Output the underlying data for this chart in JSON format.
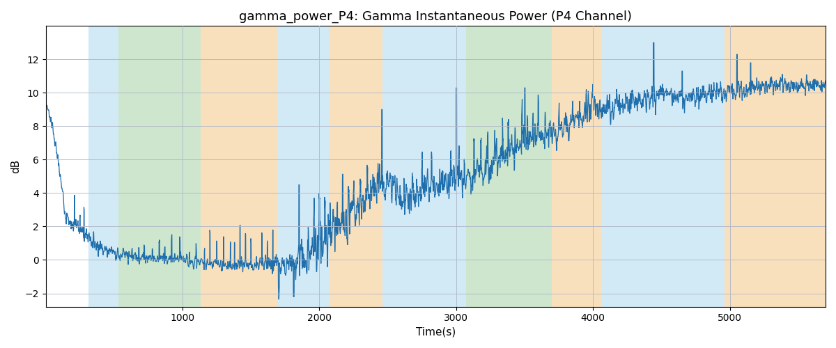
{
  "title": "gamma_power_P4: Gamma Instantaneous Power (P4 Channel)",
  "xlabel": "Time(s)",
  "ylabel": "dB",
  "xlim": [
    0,
    5700
  ],
  "ylim": [
    -2.8,
    14.0
  ],
  "line_color": "#1f6fad",
  "line_width": 0.9,
  "bg_color": "#ffffff",
  "grid_color": "#b0b8c8",
  "title_fontsize": 13,
  "label_fontsize": 11,
  "tick_fontsize": 10,
  "regions": [
    {
      "xmin": 310,
      "xmax": 530,
      "color": "#add8f0",
      "alpha": 0.55
    },
    {
      "xmin": 530,
      "xmax": 1130,
      "color": "#90c990",
      "alpha": 0.45
    },
    {
      "xmin": 1130,
      "xmax": 1700,
      "color": "#f5c888",
      "alpha": 0.55
    },
    {
      "xmin": 1700,
      "xmax": 1870,
      "color": "#add8f0",
      "alpha": 0.55
    },
    {
      "xmin": 1870,
      "xmax": 2070,
      "color": "#add8f0",
      "alpha": 0.55
    },
    {
      "xmin": 2070,
      "xmax": 2460,
      "color": "#f5c888",
      "alpha": 0.55
    },
    {
      "xmin": 2460,
      "xmax": 3070,
      "color": "#add8f0",
      "alpha": 0.55
    },
    {
      "xmin": 3070,
      "xmax": 3700,
      "color": "#90c990",
      "alpha": 0.45
    },
    {
      "xmin": 3700,
      "xmax": 4060,
      "color": "#f5c888",
      "alpha": 0.55
    },
    {
      "xmin": 4060,
      "xmax": 4960,
      "color": "#add8f0",
      "alpha": 0.55
    },
    {
      "xmin": 4960,
      "xmax": 5700,
      "color": "#f5c888",
      "alpha": 0.55
    }
  ],
  "seed": 7
}
